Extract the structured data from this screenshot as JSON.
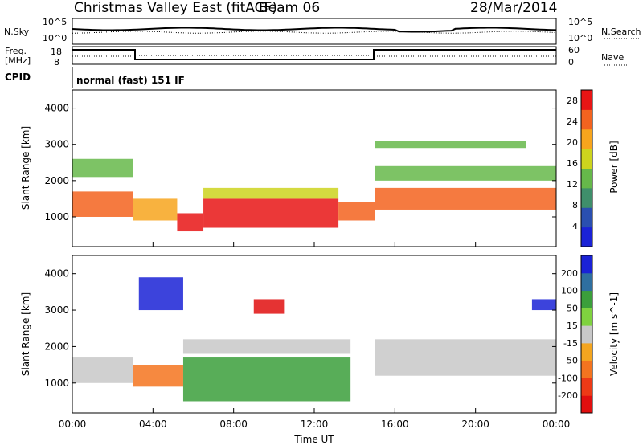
{
  "header": {
    "title": "Christmas Valley East (fitACF)",
    "beam": "Beam 06",
    "date": "28/Mar/2014"
  },
  "status": {
    "nsky_label": "N.Sky",
    "nsearch_label": "N.Search",
    "freq_label_line1": "Freq.",
    "freq_label_line2": "[MHz]",
    "nave_label": "Nave",
    "cpid_label": "CPID",
    "cpid_value": "normal (fast) 151 IF",
    "left_ticks_noise": [
      "10^5",
      "10^0"
    ],
    "right_ticks_noise": [
      "10^5",
      "10^0"
    ],
    "left_ticks_freq": [
      "18",
      "8"
    ],
    "right_ticks_nave": [
      "60",
      "0"
    ]
  },
  "chart_data": [
    {
      "type": "heatmap",
      "name": "power",
      "xlabel": "",
      "ylabel": "Slant Range [km]",
      "xlim": [
        0,
        24
      ],
      "ylim": [
        180,
        4500
      ],
      "yticks": [
        1000,
        2000,
        3000,
        4000
      ],
      "colorbar": {
        "label": "Power [dB]",
        "ticks": [
          4,
          8,
          12,
          16,
          20,
          24,
          28
        ],
        "range": [
          0,
          30
        ],
        "colors": [
          "#1a22d6",
          "#2a4fb0",
          "#3f8f6b",
          "#66b84a",
          "#cdd41e",
          "#f7a51d",
          "#f3631f",
          "#e81515"
        ]
      },
      "regions": [
        {
          "x0": 0.0,
          "x1": 3.0,
          "r0": 1000,
          "r1": 1700,
          "p": 26
        },
        {
          "x0": 0.0,
          "x1": 3.0,
          "r0": 2100,
          "r1": 2600,
          "p": 12
        },
        {
          "x0": 3.0,
          "x1": 5.2,
          "r0": 900,
          "r1": 1500,
          "p": 22
        },
        {
          "x0": 5.2,
          "x1": 6.5,
          "r0": 600,
          "r1": 1100,
          "p": 27
        },
        {
          "x0": 6.5,
          "x1": 13.2,
          "r0": 700,
          "r1": 1500,
          "p": 28
        },
        {
          "x0": 6.5,
          "x1": 13.2,
          "r0": 1500,
          "r1": 1800,
          "p": 16
        },
        {
          "x0": 13.2,
          "x1": 15.0,
          "r0": 900,
          "r1": 1400,
          "p": 24
        },
        {
          "x0": 15.0,
          "x1": 24.0,
          "r0": 1200,
          "r1": 1800,
          "p": 26
        },
        {
          "x0": 15.0,
          "x1": 24.0,
          "r0": 2000,
          "r1": 2400,
          "p": 12
        },
        {
          "x0": 15.0,
          "x1": 22.5,
          "r0": 2900,
          "r1": 3100,
          "p": 14
        }
      ]
    },
    {
      "type": "heatmap",
      "name": "velocity",
      "xlabel": "Time UT",
      "ylabel": "Slant Range [km]",
      "xlim": [
        0,
        24
      ],
      "ylim": [
        180,
        4500
      ],
      "yticks": [
        1000,
        2000,
        3000,
        4000
      ],
      "xticks": [
        "00:00",
        "04:00",
        "08:00",
        "12:00",
        "16:00",
        "20:00",
        "00:00"
      ],
      "colorbar": {
        "label": "Velocity [m s^-1]",
        "ticks": [
          200,
          100,
          50,
          15,
          -15,
          -50,
          -100,
          -200
        ],
        "colors": [
          "#1a22d6",
          "#2f6fa0",
          "#3b9f3b",
          "#7fd23f",
          "#c8c8c8",
          "#f4a51f",
          "#f4741f",
          "#ed3a16",
          "#e10f0f"
        ]
      },
      "regions": [
        {
          "x0": 0.0,
          "x1": 3.0,
          "r0": 1000,
          "r1": 1700,
          "v": -5
        },
        {
          "x0": 3.0,
          "x1": 5.5,
          "r0": 900,
          "r1": 1500,
          "v": -70
        },
        {
          "x0": 5.5,
          "x1": 13.8,
          "r0": 500,
          "r1": 1700,
          "v": 60
        },
        {
          "x0": 5.5,
          "x1": 13.8,
          "r0": 1800,
          "r1": 2200,
          "v": 0
        },
        {
          "x0": 15.0,
          "x1": 24.0,
          "r0": 1200,
          "r1": 2200,
          "v": 0
        },
        {
          "x0": 3.3,
          "x1": 5.5,
          "r0": 3000,
          "r1": 3900,
          "v": 210
        },
        {
          "x0": 9.0,
          "x1": 10.5,
          "r0": 2900,
          "r1": 3300,
          "v": -220
        },
        {
          "x0": 22.8,
          "x1": 24.0,
          "r0": 3000,
          "r1": 3300,
          "v": 210
        }
      ]
    }
  ]
}
